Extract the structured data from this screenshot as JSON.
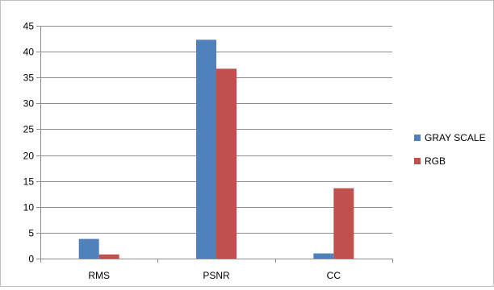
{
  "chart_data": {
    "type": "bar",
    "categories": [
      "RMS",
      "PSNR",
      "CC"
    ],
    "series": [
      {
        "name": "GRAY SCALE",
        "values": [
          3.8,
          42.3,
          1.0
        ],
        "color": "#4F81BD"
      },
      {
        "name": "RGB",
        "values": [
          0.8,
          36.7,
          13.6
        ],
        "color": "#C0504D"
      }
    ],
    "ylim": [
      0,
      45
    ],
    "yticks": [
      0,
      5,
      10,
      15,
      20,
      25,
      30,
      35,
      40,
      45
    ],
    "grid": true,
    "legend_position": "right",
    "title": "",
    "xlabel": "",
    "ylabel": ""
  }
}
